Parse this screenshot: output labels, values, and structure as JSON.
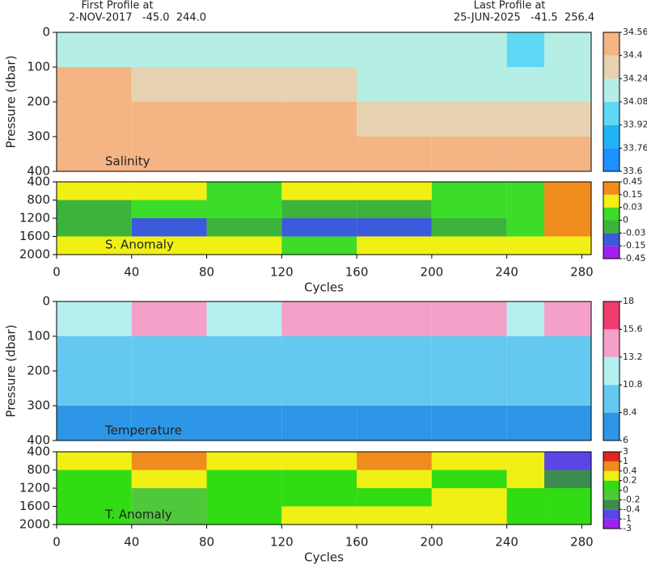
{
  "header": {
    "first_label": "First Profile at",
    "first_info": "2-NOV-2017   -45.0  244.0",
    "last_label": "Last Profile at",
    "last_info": "25-JUN-2025   -41.5  256.4"
  },
  "chart_data": [
    {
      "type": "heatmap",
      "label": "Salinity",
      "ylabel": "Pressure (dbar)",
      "xlim": [
        0,
        285
      ],
      "ylim": [
        400,
        0
      ],
      "yticks": [
        0,
        100,
        200,
        300,
        400
      ],
      "x_edges": [
        0,
        40,
        80,
        120,
        160,
        200,
        240,
        260,
        285
      ],
      "y_edges": [
        0,
        100,
        200,
        300,
        400
      ],
      "z": [
        [
          34.2,
          34.15,
          34.2,
          34.1,
          34.1,
          34.1,
          34.05,
          34.1
        ],
        [
          34.41,
          34.35,
          34.3,
          34.25,
          34.2,
          34.2,
          34.15,
          34.2
        ],
        [
          34.45,
          34.45,
          34.42,
          34.41,
          34.35,
          34.3,
          34.3,
          34.3
        ],
        [
          34.5,
          34.5,
          34.45,
          34.45,
          34.45,
          34.41,
          34.41,
          34.41
        ]
      ],
      "colorbar": {
        "levels": [
          33.6,
          33.76,
          33.92,
          34.08,
          34.24,
          34.4,
          34.56
        ],
        "colors": [
          "#1e90ff",
          "#21b4f5",
          "#5fd8f5",
          "#b4eee4",
          "#e6d2b0",
          "#f5b483"
        ]
      }
    },
    {
      "type": "heatmap",
      "label": "S. Anomaly",
      "xlabel": "Cycles",
      "xlim": [
        0,
        285
      ],
      "xticks": [
        0,
        40,
        80,
        120,
        160,
        200,
        240,
        280
      ],
      "ylim": [
        2000,
        400
      ],
      "yticks": [
        400,
        800,
        1200,
        1600,
        2000
      ],
      "x_edges": [
        0,
        40,
        80,
        120,
        160,
        200,
        240,
        260,
        285
      ],
      "y_edges": [
        400,
        800,
        1200,
        1600,
        2000
      ],
      "z": [
        [
          0.04,
          0.1,
          0.02,
          0.04,
          0.04,
          0.01,
          0.01,
          0.2
        ],
        [
          -0.01,
          0.01,
          0.02,
          -0.02,
          -0.01,
          0.01,
          0.02,
          0.3
        ],
        [
          -0.02,
          -0.04,
          -0.03,
          -0.05,
          -0.04,
          -0.02,
          0.01,
          0.3
        ],
        [
          0.04,
          0.04,
          0.05,
          0.02,
          0.04,
          0.04,
          0.05,
          0.1
        ]
      ],
      "colorbar": {
        "levels": [
          -0.45,
          -0.15,
          -0.03,
          0,
          0.03,
          0.15,
          0.45
        ],
        "colors": [
          "#a020f0",
          "#3c5adc",
          "#3cb43c",
          "#3cdc28",
          "#f0f014",
          "#f08c1e"
        ]
      }
    },
    {
      "type": "heatmap",
      "label": "Temperature",
      "ylabel": "Pressure (dbar)",
      "xlim": [
        0,
        285
      ],
      "ylim": [
        400,
        0
      ],
      "yticks": [
        0,
        100,
        200,
        300,
        400
      ],
      "x_edges": [
        0,
        40,
        80,
        120,
        160,
        200,
        240,
        260,
        285
      ],
      "y_edges": [
        0,
        100,
        200,
        300,
        400
      ],
      "z": [
        [
          11,
          14,
          11,
          13.5,
          14,
          13.5,
          12,
          14
        ],
        [
          10,
          10.5,
          10,
          10.5,
          10,
          10.5,
          10.5,
          10
        ],
        [
          8.6,
          9,
          8.6,
          8.8,
          8.5,
          8.6,
          8.6,
          8.6
        ],
        [
          8,
          8.2,
          8,
          8,
          8,
          8,
          8,
          8.2
        ]
      ],
      "colorbar": {
        "levels": [
          6,
          8.4,
          10.8,
          13.2,
          15.6,
          18
        ],
        "colors": [
          "#2d96e6",
          "#64c8f0",
          "#b4f0f0",
          "#f5a0c8",
          "#f03c6e"
        ]
      }
    },
    {
      "type": "heatmap",
      "label": "T. Anomaly",
      "xlabel": "Cycles",
      "xlim": [
        0,
        285
      ],
      "xticks": [
        0,
        40,
        80,
        120,
        160,
        200,
        240,
        280
      ],
      "ylim": [
        2000,
        400
      ],
      "yticks": [
        400,
        800,
        1200,
        1600,
        2000
      ],
      "x_edges": [
        0,
        40,
        80,
        120,
        160,
        200,
        240,
        260,
        285
      ],
      "y_edges": [
        400,
        800,
        1200,
        1600,
        2000
      ],
      "z": [
        [
          0.3,
          0.5,
          0.3,
          0.3,
          0.5,
          0.3,
          0.3,
          -0.5
        ],
        [
          0.1,
          0.2,
          0.1,
          0.1,
          0.2,
          0.1,
          0.2,
          -0.3
        ],
        [
          0.1,
          -0.1,
          0.1,
          0.1,
          0.1,
          0.3,
          0.1,
          0.1
        ],
        [
          0.1,
          -0.1,
          0.1,
          0.3,
          0.3,
          0.3,
          0.1,
          0.1
        ]
      ],
      "colorbar": {
        "levels": [
          -3,
          -1,
          -0.4,
          -0.2,
          0,
          0.2,
          0.4,
          1,
          3
        ],
        "colors": [
          "#a020f0",
          "#5a46e6",
          "#3c8c50",
          "#50c83c",
          "#32dc14",
          "#f0f014",
          "#f08c1e",
          "#dc281e"
        ]
      }
    }
  ]
}
